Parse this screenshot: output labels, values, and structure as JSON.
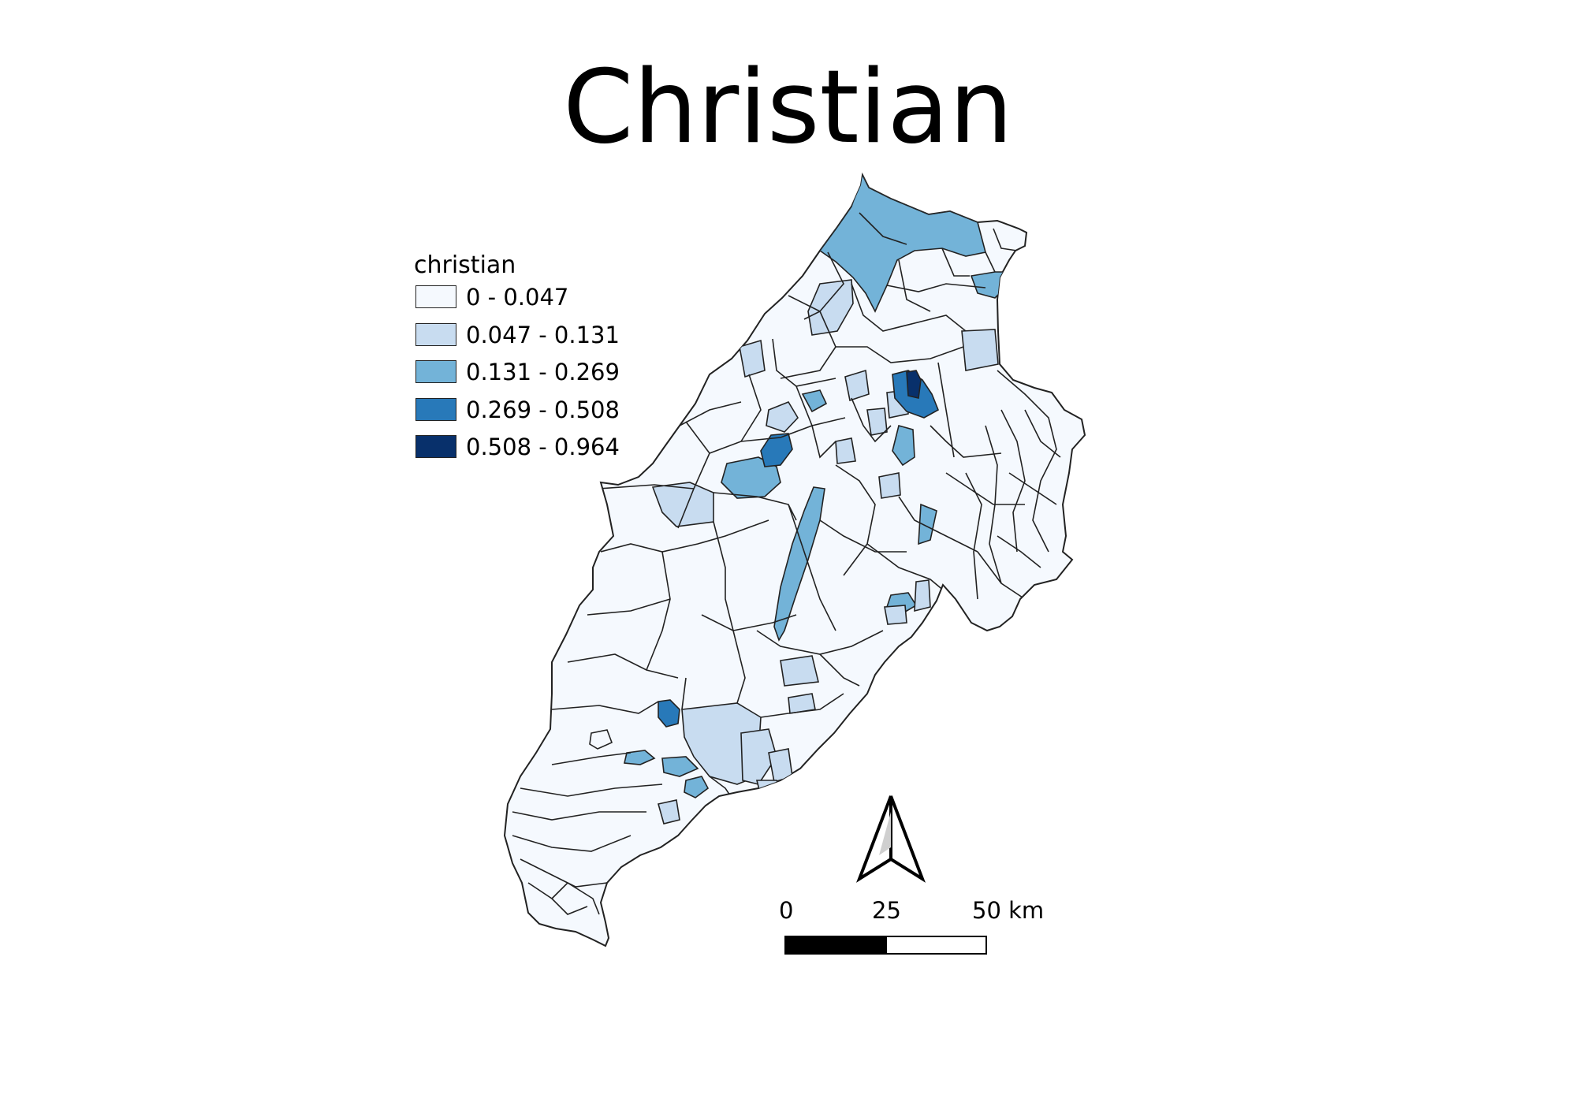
{
  "title": "Christian",
  "legend": {
    "title": "christian",
    "items": [
      {
        "label": "0 - 0.047",
        "color": "#f5f9fe"
      },
      {
        "label": "0.047 - 0.131",
        "color": "#c8dcf0"
      },
      {
        "label": "0.131 - 0.269",
        "color": "#73b3d8"
      },
      {
        "label": "0.269 - 0.508",
        "color": "#2879b9"
      },
      {
        "label": "0.508 - 0.964",
        "color": "#08306b"
      }
    ]
  },
  "scale_bar": {
    "labels": [
      "0",
      "25",
      "50 km"
    ],
    "segment_colors": [
      "#000000",
      "#ffffff"
    ]
  },
  "north_arrow": {
    "icon": "north-arrow-icon"
  },
  "colors": {
    "boundary": "#222222",
    "background": "#ffffff"
  }
}
